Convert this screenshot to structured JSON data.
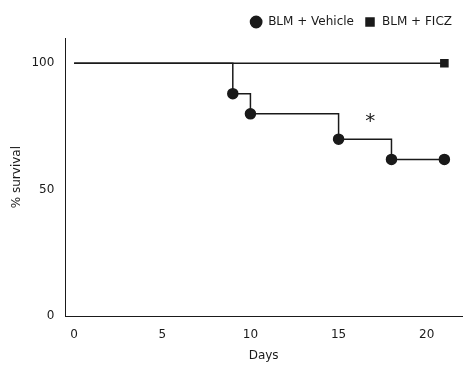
{
  "chart_data": {
    "type": "line",
    "x_label": "Days",
    "y_label": "% survival",
    "color": "#1a1a1a",
    "series": [
      {
        "name": "BLM + Vehicle",
        "marker": "circle",
        "x": [
          0,
          9,
          9,
          10,
          10,
          15,
          15,
          18,
          18,
          21
        ],
        "values": [
          100,
          100,
          88,
          88,
          80,
          80,
          70,
          70,
          62,
          62
        ],
        "marker_x": [
          9,
          10,
          15,
          18,
          21
        ],
        "marker_values": [
          88,
          80,
          70,
          62,
          62
        ]
      },
      {
        "name": "BLM + FICZ",
        "marker": "square",
        "x": [
          0,
          21
        ],
        "values": [
          100,
          100
        ],
        "marker_x": [
          21
        ],
        "marker_values": [
          100
        ]
      }
    ],
    "annotations": [
      {
        "text": "*",
        "x": 16.8,
        "y": 77
      }
    ],
    "xlim": [
      -0.5,
      22
    ],
    "xticks": [
      0,
      5,
      10,
      15,
      20
    ],
    "ylim": [
      0,
      110
    ],
    "yticks": [
      0,
      50,
      100
    ],
    "grid": false,
    "legend": "upper right"
  }
}
